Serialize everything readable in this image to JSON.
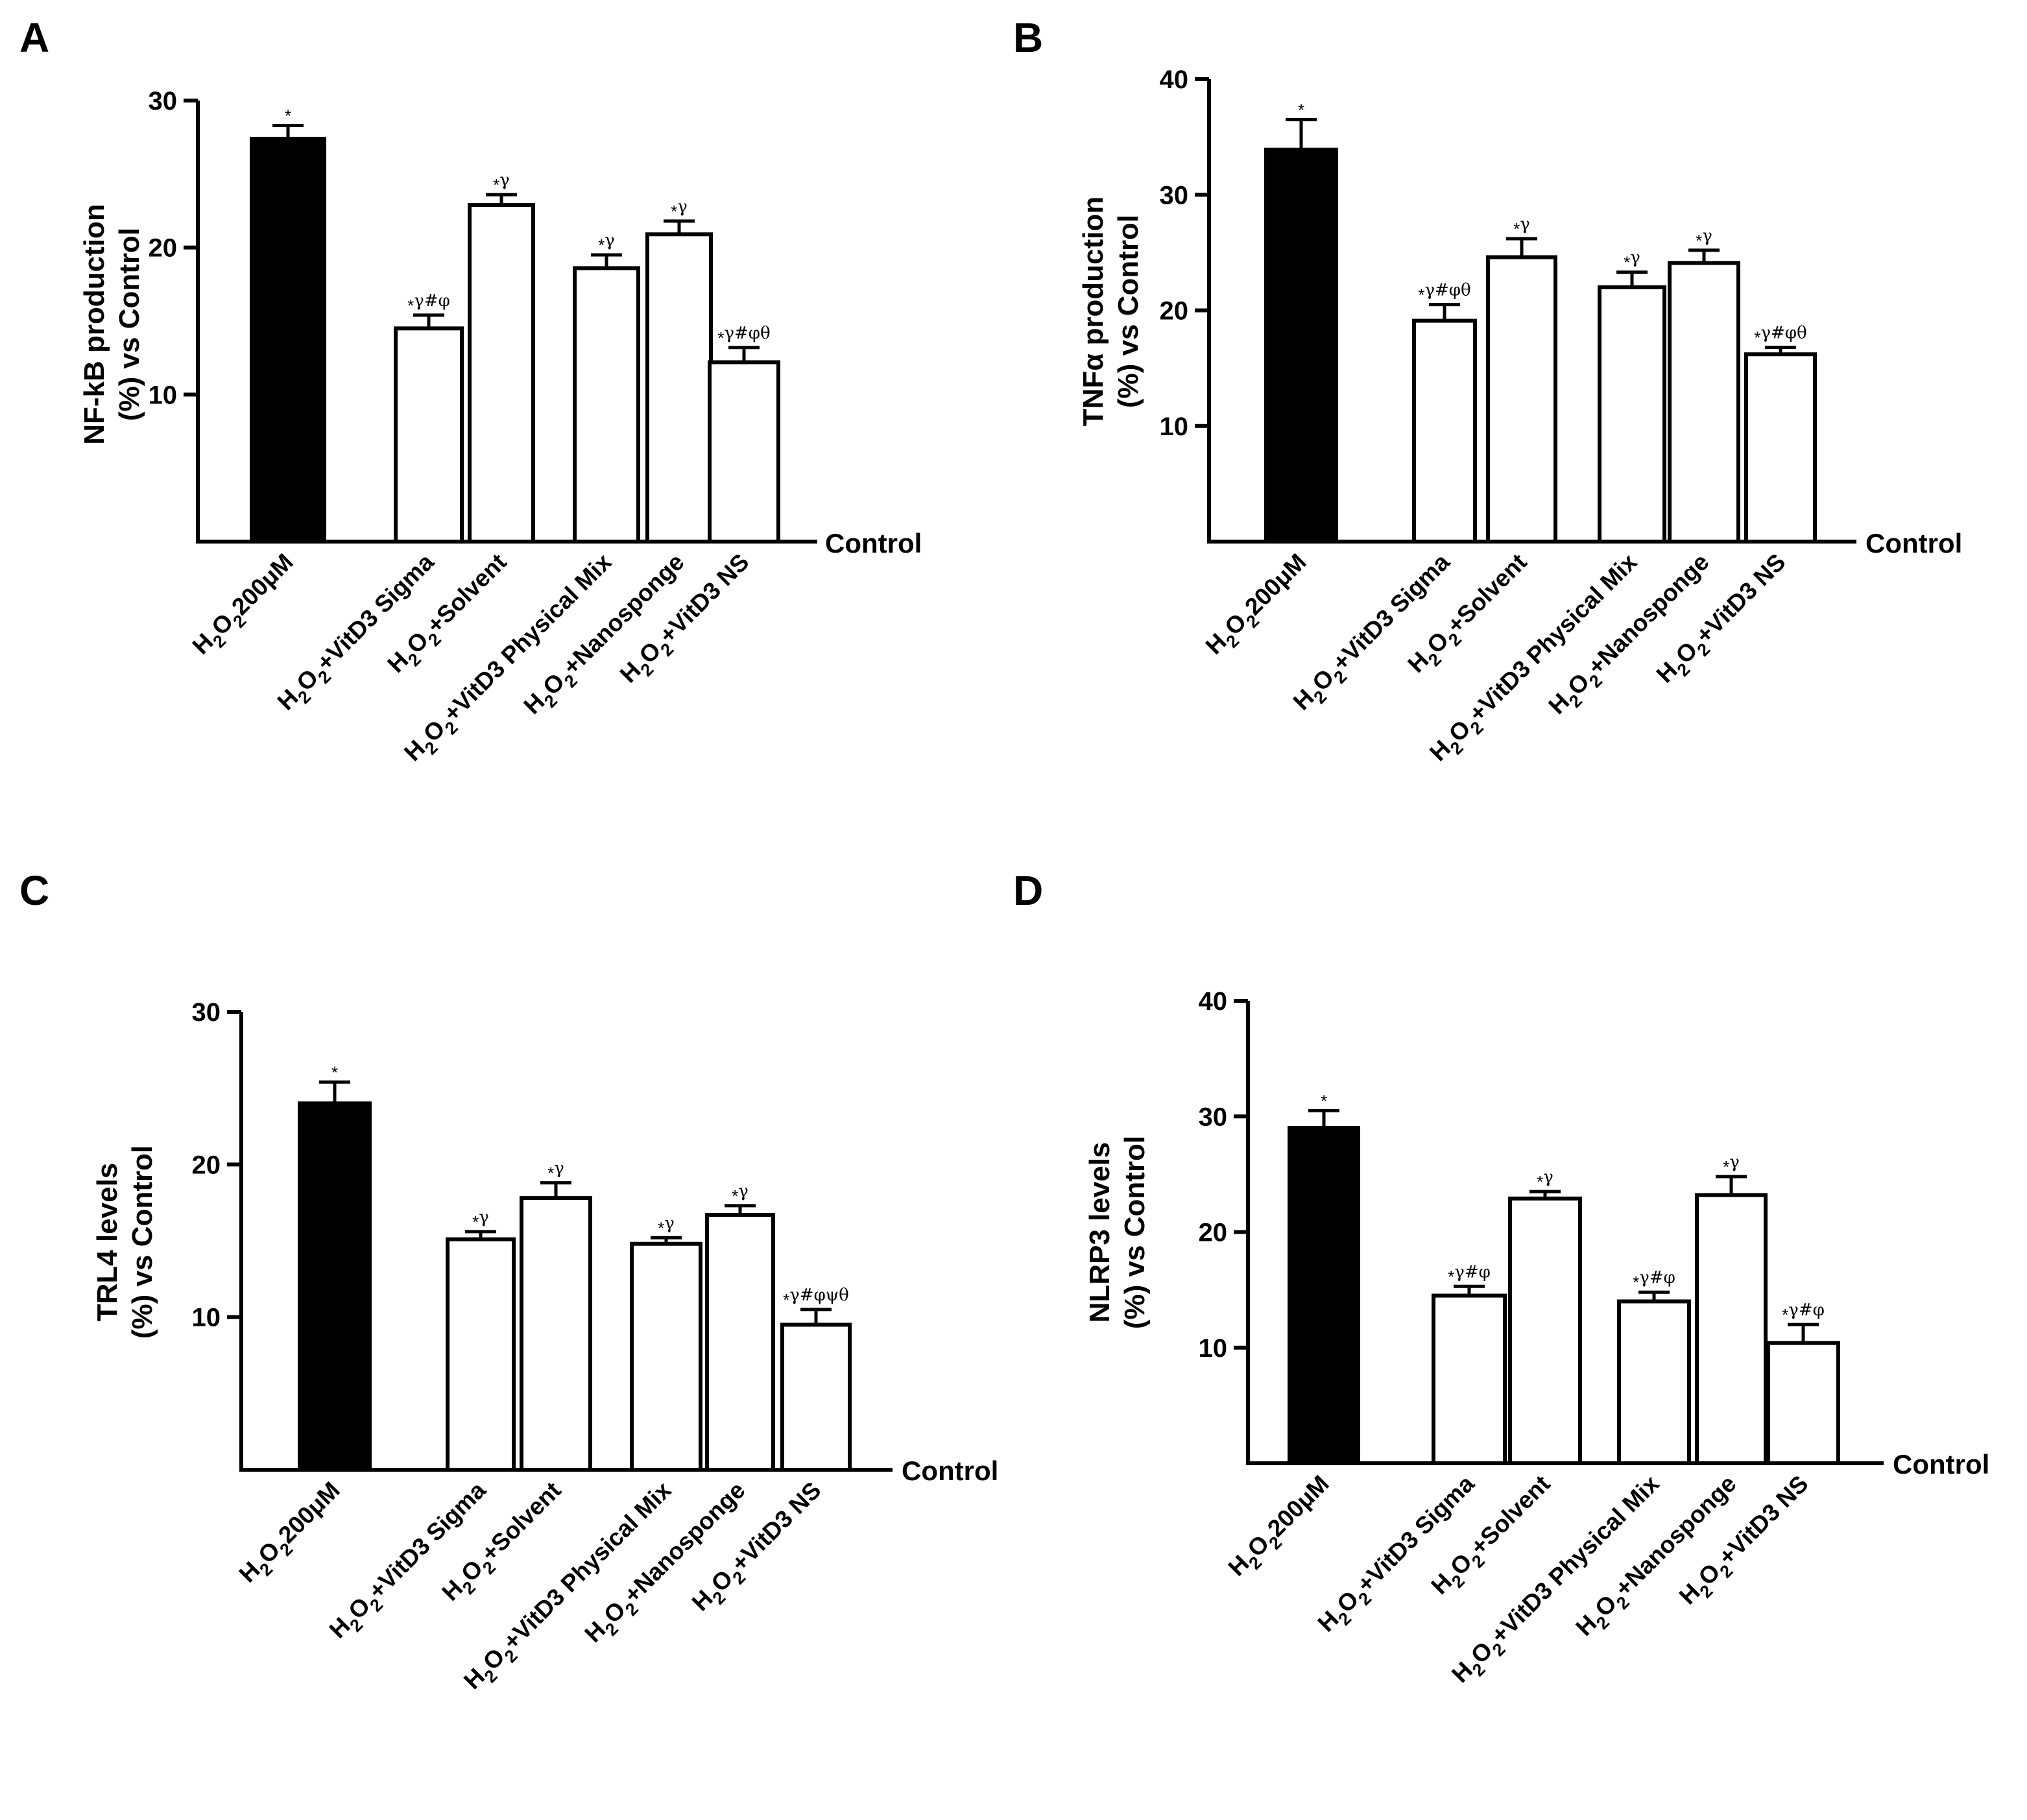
{
  "colors": {
    "ink": "#000000",
    "filled": "#000000",
    "open": "#ffffff"
  },
  "chart_data": [
    {
      "type": "bar",
      "panel": "A",
      "ylabel_line1": "NF-kB production",
      "ylabel_line2": "(%) vs Control",
      "baseline_label": "Control",
      "ylim": [
        0,
        30
      ],
      "yticks": [
        10,
        20,
        30
      ],
      "categories": [
        {
          "base": "H",
          "parts": [
            [
              "H",
              ""
            ],
            [
              "2",
              "sub"
            ],
            [
              "O",
              ""
            ],
            [
              "2",
              "sub"
            ],
            [
              "200μM",
              ""
            ]
          ]
        },
        {
          "parts": [
            [
              "H",
              ""
            ],
            [
              "2",
              "sub"
            ],
            [
              "O",
              ""
            ],
            [
              "2",
              "sub"
            ],
            [
              "+VitD3 Sigma",
              ""
            ]
          ]
        },
        {
          "parts": [
            [
              "H",
              ""
            ],
            [
              "2",
              "sub"
            ],
            [
              "O",
              ""
            ],
            [
              "2",
              "sub"
            ],
            [
              "+Solvent",
              ""
            ]
          ]
        },
        {
          "parts": [
            [
              "H",
              ""
            ],
            [
              "2",
              "sub"
            ],
            [
              "O",
              ""
            ],
            [
              "2",
              "sub"
            ],
            [
              "+VitD3 Physical Mix",
              ""
            ]
          ]
        },
        {
          "parts": [
            [
              "H",
              ""
            ],
            [
              "2",
              "sub"
            ],
            [
              "O",
              ""
            ],
            [
              "2",
              "sub"
            ],
            [
              "+Nanosponge",
              ""
            ]
          ]
        },
        {
          "parts": [
            [
              "H",
              ""
            ],
            [
              "2",
              "sub"
            ],
            [
              "O",
              ""
            ],
            [
              "2",
              "sub"
            ],
            [
              "+VitD3 NS",
              ""
            ]
          ]
        }
      ],
      "values": [
        27.4,
        14.5,
        22.9,
        18.6,
        20.9,
        12.2
      ],
      "errors": [
        0.9,
        0.9,
        0.7,
        0.9,
        0.9,
        1.0
      ],
      "fills": [
        "filled",
        "open",
        "open",
        "open",
        "open",
        "open"
      ],
      "annotations": [
        [
          "*",
          ""
        ],
        [
          "*",
          "γ#φ"
        ],
        [
          "*",
          "γ"
        ],
        [
          "*",
          "γ"
        ],
        [
          "*",
          "γ"
        ],
        [
          "*",
          "γ#φθ"
        ]
      ]
    },
    {
      "type": "bar",
      "panel": "B",
      "ylabel_line1": "TNFα production",
      "ylabel_line2": "(%) vs Control",
      "baseline_label": "Control",
      "ylim": [
        0,
        40
      ],
      "yticks": [
        10,
        20,
        30,
        40
      ],
      "categories": [
        {
          "parts": [
            [
              "H",
              ""
            ],
            [
              "2",
              "sub"
            ],
            [
              "O",
              ""
            ],
            [
              "2",
              "sub"
            ],
            [
              "200μM",
              ""
            ]
          ]
        },
        {
          "parts": [
            [
              "H",
              ""
            ],
            [
              "2",
              "sub"
            ],
            [
              "O",
              ""
            ],
            [
              "2",
              "sub"
            ],
            [
              "+VitD3 Sigma",
              ""
            ]
          ]
        },
        {
          "parts": [
            [
              "H",
              ""
            ],
            [
              "2",
              "sub"
            ],
            [
              "O",
              ""
            ],
            [
              "2",
              "sub"
            ],
            [
              "+Solvent",
              ""
            ]
          ]
        },
        {
          "parts": [
            [
              "H",
              ""
            ],
            [
              "2",
              "sub"
            ],
            [
              "O",
              ""
            ],
            [
              "2",
              "sub"
            ],
            [
              "+VitD3 Physical Mix",
              ""
            ]
          ]
        },
        {
          "parts": [
            [
              "H",
              ""
            ],
            [
              "2",
              "sub"
            ],
            [
              "O",
              ""
            ],
            [
              "2",
              "sub"
            ],
            [
              "+Nanosponge",
              ""
            ]
          ]
        },
        {
          "parts": [
            [
              "H",
              ""
            ],
            [
              "2",
              "sub"
            ],
            [
              "O",
              ""
            ],
            [
              "2",
              "sub"
            ],
            [
              "+VitD3 NS",
              ""
            ]
          ]
        }
      ],
      "values": [
        33.9,
        19.1,
        24.6,
        22.0,
        24.1,
        16.2
      ],
      "errors": [
        2.6,
        1.4,
        1.6,
        1.3,
        1.1,
        0.6
      ],
      "fills": [
        "filled",
        "open",
        "open",
        "open",
        "open",
        "open"
      ],
      "annotations": [
        [
          "*",
          ""
        ],
        [
          "*",
          "γ#φθ"
        ],
        [
          "*",
          "γ"
        ],
        [
          "*",
          "γ"
        ],
        [
          "*",
          "γ"
        ],
        [
          "*",
          "γ#φθ"
        ]
      ]
    },
    {
      "type": "bar",
      "panel": "C",
      "ylabel_line1": "TRL4 levels",
      "ylabel_line2": "(%) vs Control",
      "baseline_label": "Control",
      "ylim": [
        0,
        30
      ],
      "yticks": [
        10,
        20,
        30
      ],
      "categories": [
        {
          "parts": [
            [
              "H",
              ""
            ],
            [
              "2",
              "sub"
            ],
            [
              "O",
              ""
            ],
            [
              "2",
              "sub"
            ],
            [
              "200μM",
              ""
            ]
          ]
        },
        {
          "parts": [
            [
              "H",
              ""
            ],
            [
              "2",
              "sub"
            ],
            [
              "O",
              ""
            ],
            [
              "2",
              "sub"
            ],
            [
              "+VitD3 Sigma",
              ""
            ]
          ]
        },
        {
          "parts": [
            [
              "H",
              ""
            ],
            [
              "2",
              "sub"
            ],
            [
              "O",
              ""
            ],
            [
              "2",
              "sub"
            ],
            [
              "+Solvent",
              ""
            ]
          ]
        },
        {
          "parts": [
            [
              "H",
              ""
            ],
            [
              "2",
              "sub"
            ],
            [
              "O",
              ""
            ],
            [
              "2",
              "sub"
            ],
            [
              "+VitD3 Physical Mix",
              ""
            ]
          ]
        },
        {
          "parts": [
            [
              "H",
              ""
            ],
            [
              "2",
              "sub"
            ],
            [
              "O",
              ""
            ],
            [
              "2",
              "sub"
            ],
            [
              "+Nanosponge",
              ""
            ]
          ]
        },
        {
          "parts": [
            [
              "H",
              ""
            ],
            [
              "2",
              "sub"
            ],
            [
              "O",
              ""
            ],
            [
              "2",
              "sub"
            ],
            [
              "+VitD3 NS",
              ""
            ]
          ]
        }
      ],
      "values": [
        24.0,
        15.1,
        17.8,
        14.8,
        16.7,
        9.5
      ],
      "errors": [
        1.4,
        0.5,
        1.0,
        0.4,
        0.6,
        1.0
      ],
      "fills": [
        "filled",
        "open",
        "open",
        "open",
        "open",
        "open"
      ],
      "annotations": [
        [
          "*",
          ""
        ],
        [
          "*",
          "γ"
        ],
        [
          "*",
          "γ"
        ],
        [
          "*",
          "γ"
        ],
        [
          "*",
          "γ"
        ],
        [
          "*",
          "γ#φψθ"
        ]
      ]
    },
    {
      "type": "bar",
      "panel": "D",
      "ylabel_line1": "NLRP3 levels",
      "ylabel_line2": "(%) vs Control",
      "baseline_label": "Control",
      "ylim": [
        0,
        40
      ],
      "yticks": [
        10,
        20,
        30,
        40
      ],
      "categories": [
        {
          "parts": [
            [
              "H",
              ""
            ],
            [
              "2",
              "sub"
            ],
            [
              "O",
              ""
            ],
            [
              "2",
              "sub"
            ],
            [
              "200μM",
              ""
            ]
          ]
        },
        {
          "parts": [
            [
              "H",
              ""
            ],
            [
              "2",
              "sub"
            ],
            [
              "O",
              ""
            ],
            [
              "2",
              "sub"
            ],
            [
              "+VitD3 Sigma",
              ""
            ]
          ]
        },
        {
          "parts": [
            [
              "H",
              ""
            ],
            [
              "2",
              "sub"
            ],
            [
              "O",
              ""
            ],
            [
              "2",
              "sub"
            ],
            [
              "+Solvent",
              ""
            ]
          ]
        },
        {
          "parts": [
            [
              "H",
              ""
            ],
            [
              "2",
              "sub"
            ],
            [
              "O",
              ""
            ],
            [
              "2",
              "sub"
            ],
            [
              "+VitD3 Physical Mix",
              ""
            ]
          ]
        },
        {
          "parts": [
            [
              "H",
              ""
            ],
            [
              "2",
              "sub"
            ],
            [
              "O",
              ""
            ],
            [
              "2",
              "sub"
            ],
            [
              "+Nanosponge",
              ""
            ]
          ]
        },
        {
          "parts": [
            [
              "H",
              ""
            ],
            [
              "2",
              "sub"
            ],
            [
              "O",
              ""
            ],
            [
              "2",
              "sub"
            ],
            [
              "+VitD3 NS",
              ""
            ]
          ]
        }
      ],
      "values": [
        29.0,
        14.5,
        22.9,
        14.0,
        23.2,
        10.4
      ],
      "errors": [
        1.5,
        0.8,
        0.6,
        0.8,
        1.6,
        1.6
      ],
      "fills": [
        "filled",
        "open",
        "open",
        "open",
        "open",
        "open"
      ],
      "annotations": [
        [
          "*",
          ""
        ],
        [
          "*",
          "γ#φ"
        ],
        [
          "*",
          "γ"
        ],
        [
          "*",
          "γ#φ"
        ],
        [
          "*",
          "γ"
        ],
        [
          "*",
          "γ#φ"
        ]
      ]
    }
  ]
}
